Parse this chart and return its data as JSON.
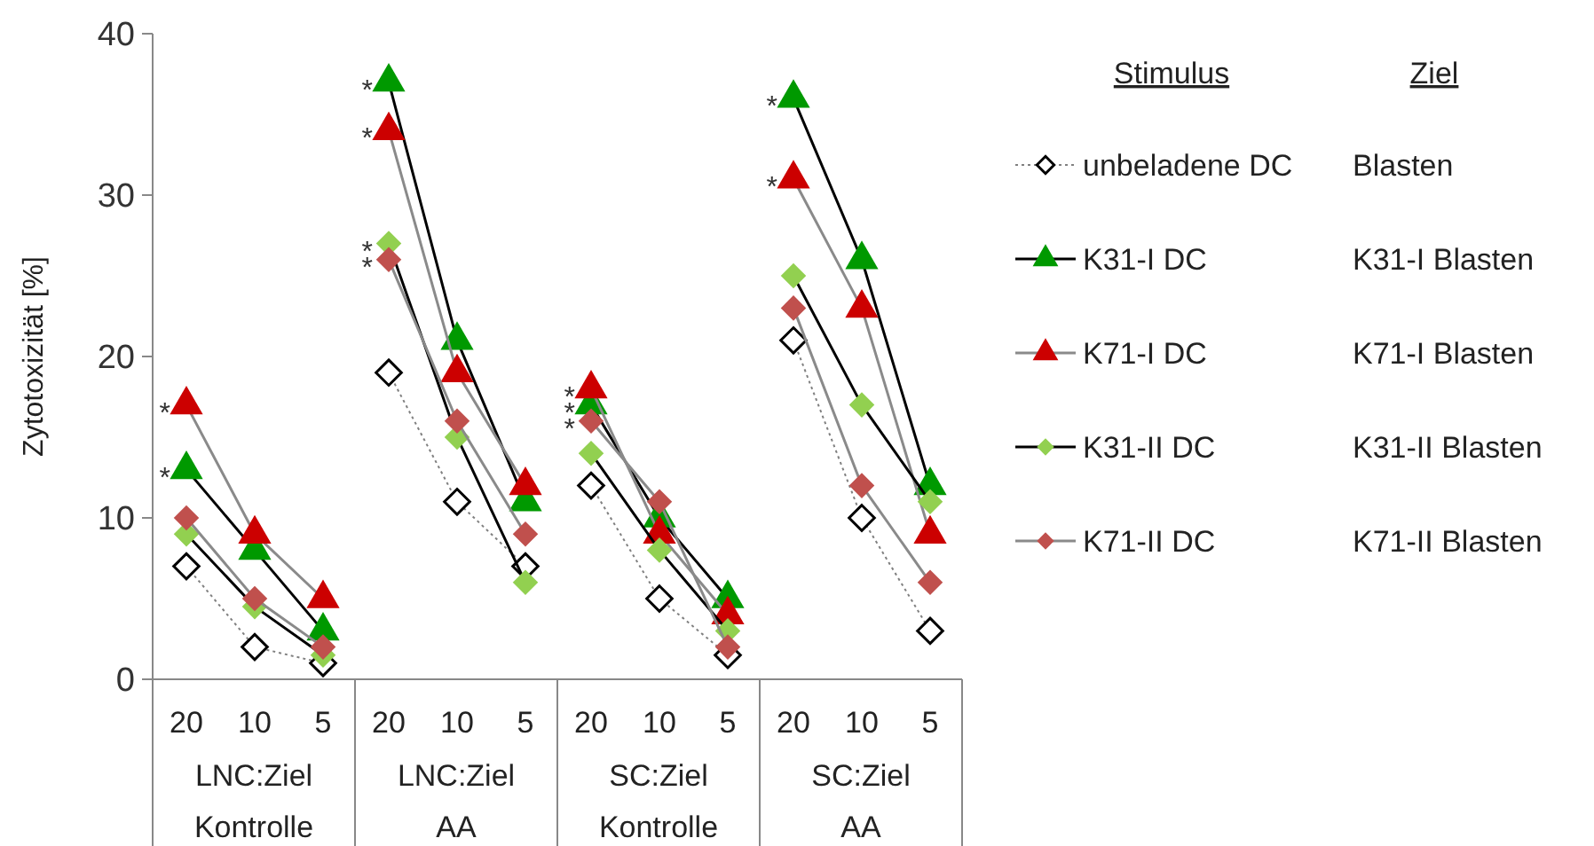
{
  "chart_data": [
    {
      "type": "line",
      "ylabel": "Zytotoxizität [%]",
      "xlabel": "LNC:Ziel Kontrolle",
      "categories": [
        "20",
        "10",
        "5"
      ],
      "ylim": [
        0,
        40
      ],
      "yticks": [
        0,
        10,
        20,
        30,
        40
      ],
      "grid": false,
      "legend": false,
      "series": [
        {
          "color": "#ffffff",
          "marker": "diamond",
          "line_style": "dotted",
          "values": [
            7,
            2,
            1
          ]
        },
        {
          "color": "#009900",
          "marker": "triangle",
          "values": [
            13,
            8,
            3
          ]
        },
        {
          "color": "#cc0000",
          "marker": "triangle",
          "values": [
            17,
            9,
            5
          ]
        },
        {
          "color": "#92d050",
          "marker": "diamond",
          "values": [
            9,
            4.5,
            1.5
          ]
        },
        {
          "color": "#c0504d",
          "marker": "diamond",
          "values": [
            10,
            5,
            2
          ]
        }
      ],
      "annotations": [
        {
          "text": "*",
          "x": "20",
          "y": 17
        },
        {
          "text": "*",
          "x": "20",
          "y": 13
        }
      ]
    },
    {
      "type": "line",
      "xlabel": "LNC:Ziel AA",
      "categories": [
        "20",
        "10",
        "5"
      ],
      "ylim": [
        0,
        40
      ],
      "tick_labels": "x",
      "grid": false,
      "legend": false,
      "series": [
        {
          "color": "#ffffff",
          "marker": "diamond",
          "line_style": "dotted",
          "values": [
            19,
            11,
            7
          ]
        },
        {
          "color": "#009900",
          "marker": "triangle",
          "values": [
            37,
            21,
            11
          ]
        },
        {
          "color": "#cc0000",
          "marker": "triangle",
          "values": [
            34,
            19,
            12
          ]
        },
        {
          "color": "#92d050",
          "marker": "diamond",
          "values": [
            27,
            15,
            6
          ]
        },
        {
          "color": "#c0504d",
          "marker": "diamond",
          "values": [
            26,
            16,
            9
          ]
        }
      ],
      "annotations": [
        {
          "text": "*",
          "x": "20",
          "y": 37
        },
        {
          "text": "*",
          "x": "20",
          "y": 34
        },
        {
          "text": "*",
          "x": "20",
          "y": 27
        },
        {
          "text": "*",
          "x": "20",
          "y": 26
        }
      ]
    },
    {
      "type": "line",
      "xlabel": "SC:Ziel Kontrolle",
      "categories": [
        "20",
        "10",
        "5"
      ],
      "ylim": [
        0,
        40
      ],
      "tick_labels": "x",
      "grid": false,
      "legend": false,
      "series": [
        {
          "color": "#ffffff",
          "marker": "diamond",
          "line_style": "dotted",
          "values": [
            12,
            5,
            1.5
          ]
        },
        {
          "color": "#009900",
          "marker": "triangle",
          "values": [
            17,
            10,
            5
          ]
        },
        {
          "color": "#cc0000",
          "marker": "triangle",
          "values": [
            18,
            9,
            4
          ]
        },
        {
          "color": "#92d050",
          "marker": "diamond",
          "values": [
            14,
            8,
            3
          ]
        },
        {
          "color": "#c0504d",
          "marker": "diamond",
          "values": [
            16,
            11,
            2
          ]
        }
      ],
      "annotations": [
        {
          "text": "*",
          "x": "20",
          "y": 18
        },
        {
          "text": "*",
          "x": "20",
          "y": 17
        },
        {
          "text": "*",
          "x": "20",
          "y": 16
        }
      ]
    },
    {
      "type": "line",
      "xlabel": "SC:Ziel AA",
      "categories": [
        "20",
        "10",
        "5"
      ],
      "ylim": [
        0,
        40
      ],
      "tick_labels": "x",
      "grid": false,
      "legend": "right",
      "legend_title": "Stimulus",
      "series": [
        {
          "name": "unbeladene DC",
          "color": "#ffffff",
          "marker": "diamond",
          "line_style": "dotted",
          "values": [
            21,
            10,
            3
          ]
        },
        {
          "name": "K31-I DC",
          "color": "#009900",
          "marker": "triangle",
          "values": [
            36,
            26,
            12
          ]
        },
        {
          "name": "K71-I DC",
          "color": "#cc0000",
          "marker": "triangle",
          "values": [
            31,
            23,
            9
          ]
        },
        {
          "name": "K31-II DC",
          "color": "#92d050",
          "marker": "diamond",
          "values": [
            25,
            17,
            11
          ]
        },
        {
          "name": "K71-II DC",
          "color": "#c0504d",
          "marker": "diamond",
          "values": [
            23,
            12,
            6
          ]
        }
      ],
      "annotations": [
        "Ziel",
        "Blasten",
        "K31-I Blasten",
        "K71-I Blasten",
        "K31-II Blasten",
        "K71-II Blasten",
        {
          "text": "*",
          "x": "20",
          "y": 36
        },
        {
          "text": "*",
          "x": "20",
          "y": 31
        }
      ]
    }
  ]
}
